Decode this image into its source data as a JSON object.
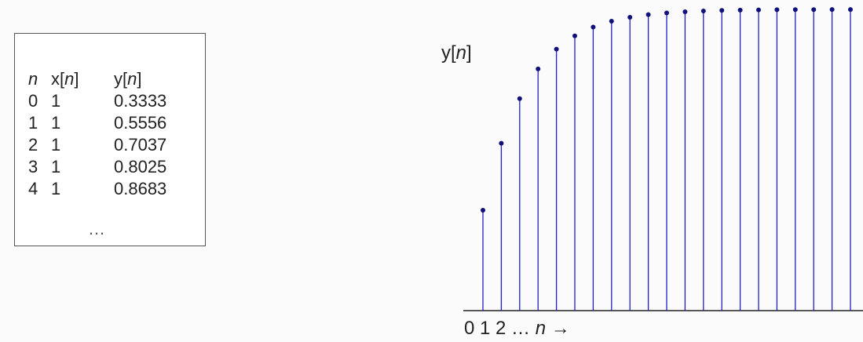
{
  "table": {
    "headers": {
      "n": "n",
      "x_prefix": "x[",
      "x_var": "n",
      "x_suffix": "]",
      "y_prefix": "y[",
      "y_var": "n",
      "y_suffix": "]"
    },
    "rows": [
      {
        "n": "0",
        "x": "1",
        "y": "0.3333"
      },
      {
        "n": "1",
        "x": "1",
        "y": "0.5556"
      },
      {
        "n": "2",
        "x": "1",
        "y": "0.7037"
      },
      {
        "n": "3",
        "x": "1",
        "y": "0.8025"
      },
      {
        "n": "4",
        "x": "1",
        "y": "0.8683"
      }
    ],
    "ellipsis": "…"
  },
  "chart_data": {
    "type": "stem",
    "ylabel_prefix": "y[",
    "ylabel_var": "n",
    "ylabel_suffix": "]",
    "xlabel_prefix": "0 1 2 … ",
    "xlabel_var": "n",
    "xlabel_suffix": " →",
    "x": [
      0,
      1,
      2,
      3,
      4,
      5,
      6,
      7,
      8,
      9,
      10,
      11,
      12,
      13,
      14,
      15,
      16,
      17,
      18,
      19,
      20
    ],
    "values": [
      0.3333,
      0.5556,
      0.7037,
      0.8025,
      0.8683,
      0.9122,
      0.9415,
      0.961,
      0.974,
      0.9827,
      0.9884,
      0.9923,
      0.9949,
      0.9966,
      0.9977,
      0.9985,
      0.999,
      0.9993,
      0.9995,
      0.9997,
      0.9998
    ],
    "ylim": [
      0,
      1
    ],
    "stem_color": "#1f1fc8",
    "marker_color": "#10107a",
    "axis_color": "#222222"
  }
}
